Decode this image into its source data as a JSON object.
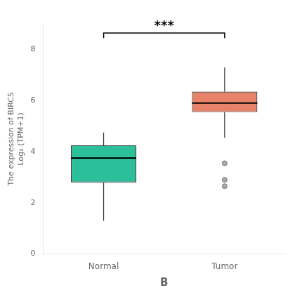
{
  "chart_data": {
    "type": "box",
    "categories": [
      "Normal",
      "Tumor"
    ],
    "boxes": [
      {
        "whisker_low": 1.3,
        "q1": 2.8,
        "median": 3.75,
        "q3": 4.25,
        "whisker_high": 4.75,
        "outliers": [],
        "color": "#2bbf9a"
      },
      {
        "whisker_low": 4.55,
        "q1": 5.55,
        "median": 5.9,
        "q3": 6.35,
        "whisker_high": 7.3,
        "outliers": [
          3.55,
          2.9,
          2.65
        ],
        "color": "#e8836a"
      }
    ],
    "ylabel": [
      "The expression of BIRC5",
      "Log₂ (TPM+1)"
    ],
    "xlabel": "B",
    "ylim": [
      0,
      9
    ],
    "yticks": [
      0,
      2,
      4,
      6,
      8
    ],
    "annotations": [
      {
        "text": "***",
        "between": [
          "Normal",
          "Tumor"
        ]
      }
    ],
    "grid": false
  }
}
